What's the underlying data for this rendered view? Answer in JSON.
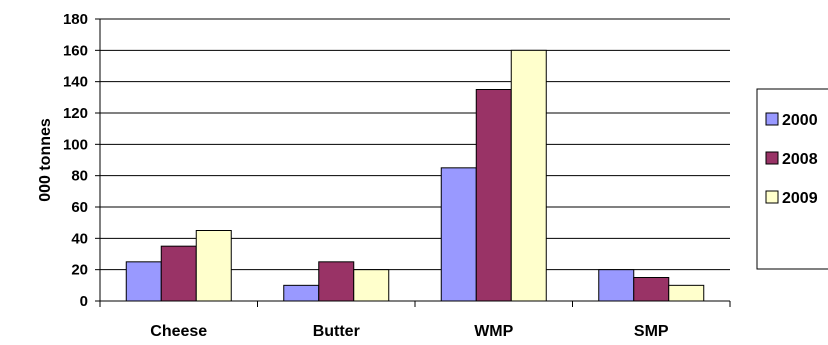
{
  "chart_data": {
    "type": "bar",
    "title": "",
    "xlabel": "",
    "ylabel": "000 tonnes",
    "categories": [
      "Cheese",
      "Butter",
      "WMP",
      "SMP"
    ],
    "series": [
      {
        "name": "2000",
        "values": [
          25,
          10,
          85,
          20
        ],
        "color": "#9999ff"
      },
      {
        "name": "2008",
        "values": [
          35,
          25,
          135,
          15
        ],
        "color": "#993366"
      },
      {
        "name": "2009",
        "values": [
          45,
          20,
          160,
          10
        ],
        "color": "#ffffcc"
      }
    ],
    "ylim": [
      0,
      180
    ],
    "yticks": [
      0,
      20,
      40,
      60,
      80,
      100,
      120,
      140,
      160,
      180
    ],
    "grid": true,
    "legend": "right"
  }
}
